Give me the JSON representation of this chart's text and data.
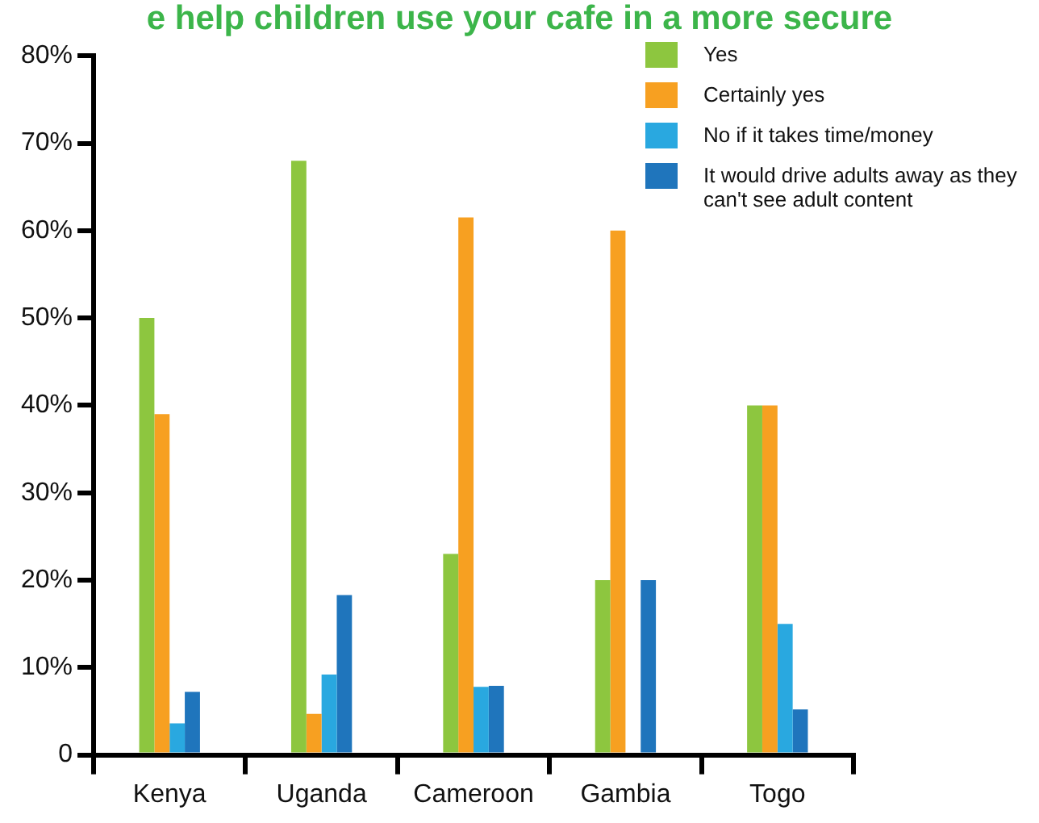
{
  "chart_data": {
    "type": "bar",
    "title": "e help children use your cafe in a more secure",
    "categories": [
      "Kenya",
      "Uganda",
      "Cameroon",
      "Gambia",
      "Togo"
    ],
    "series": [
      {
        "name": "Yes",
        "color": "#8dc63f",
        "values": [
          50,
          68,
          23,
          20,
          40
        ]
      },
      {
        "name": "Certainly yes",
        "color": "#f7a021",
        "values": [
          39,
          4.7,
          61.5,
          60,
          40
        ]
      },
      {
        "name": "No if it takes time/money",
        "color": "#29a8e0",
        "values": [
          3.6,
          9.2,
          7.8,
          null,
          15
        ]
      },
      {
        "name": "It would drive adults away as they can't see adult content",
        "color": "#1f75bc",
        "values": [
          7.2,
          18.3,
          7.9,
          20,
          5.2
        ]
      }
    ],
    "ylim": [
      0,
      80
    ],
    "yticks": [
      {
        "value": 0,
        "label": "0"
      },
      {
        "value": 10,
        "label": "10%"
      },
      {
        "value": 20,
        "label": "20%"
      },
      {
        "value": 30,
        "label": "30%"
      },
      {
        "value": 40,
        "label": "40%"
      },
      {
        "value": 50,
        "label": "50%"
      },
      {
        "value": 60,
        "label": "60%"
      },
      {
        "value": 70,
        "label": "70%"
      },
      {
        "value": 80,
        "label": "80%"
      }
    ],
    "grid": false,
    "legend": "top right"
  }
}
